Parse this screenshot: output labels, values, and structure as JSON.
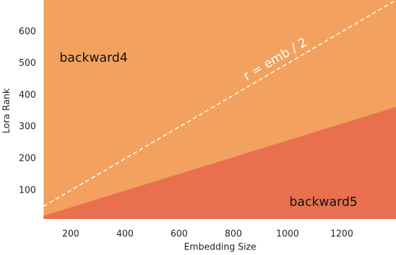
{
  "chart_data": {
    "type": "area",
    "xlabel": "Embedding Size",
    "ylabel": "Lora Rank",
    "xlim": [
      100,
      1400
    ],
    "ylim": [
      10,
      700
    ],
    "xticks": [
      200,
      400,
      600,
      800,
      1000,
      1200
    ],
    "yticks": [
      100,
      200,
      300,
      400,
      500,
      600
    ],
    "x": [
      100,
      1400
    ],
    "series": [
      {
        "name": "backward4",
        "color": "#f2a25e",
        "fill": "above"
      },
      {
        "name": "backward5",
        "color": "#e8704f",
        "fill": "below",
        "values": [
          20,
          363
        ]
      },
      {
        "name": "r = emb / 2",
        "color": "#ffffff",
        "dashed": true,
        "values": [
          50,
          700
        ]
      }
    ]
  }
}
